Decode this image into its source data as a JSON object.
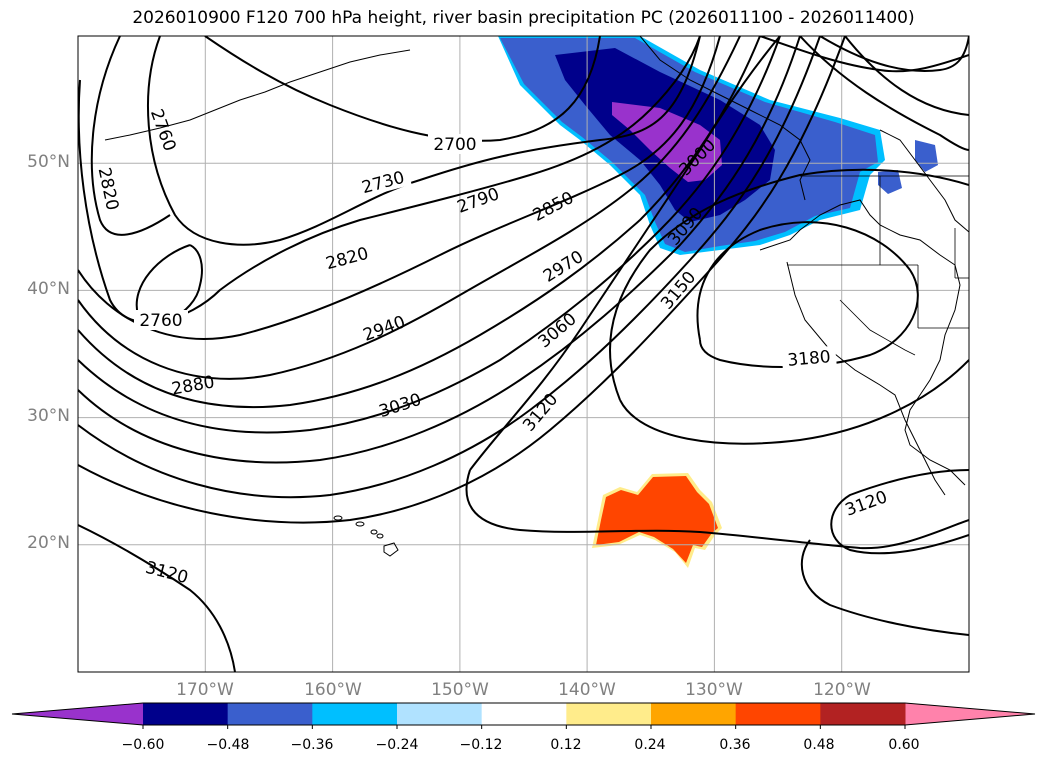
{
  "title": "2026010900 F120 700 hPa height, river basin precipitation PC (2026011100 - 2026011400)",
  "map": {
    "projection": "plate-carree",
    "lon_range_deg": [
      -180,
      -110
    ],
    "lat_range_deg": [
      10,
      60
    ],
    "gridlines": true
  },
  "lat_labels": [
    "50°N",
    "40°N",
    "30°N",
    "20°N"
  ],
  "lon_labels": [
    "170°W",
    "160°W",
    "150°W",
    "140°W",
    "130°W",
    "120°W"
  ],
  "contour_labels": [
    "2700",
    "2730",
    "2760",
    "2760",
    "2790",
    "2820",
    "2820",
    "2850",
    "2880",
    "2940",
    "2970",
    "3000",
    "3030",
    "3060",
    "3090",
    "3120",
    "3120",
    "3120",
    "3150",
    "3180"
  ],
  "colorbar": {
    "orientation": "horizontal",
    "extend": "both",
    "tick_labels": [
      "−0.60",
      "−0.48",
      "−0.36",
      "−0.24",
      "−0.12",
      "0.12",
      "0.24",
      "0.36",
      "0.48",
      "0.60"
    ],
    "colors": [
      "#9932CC",
      "#00008B",
      "#3A5FCD",
      "#00BFFF",
      "#B0E2FF",
      "#FFFFFF",
      "#FFEC8B",
      "#FFA500",
      "#FF4500",
      "#B22222",
      "#FF82AB"
    ]
  },
  "palette": {
    "shading_negative_strong": "#9932CC",
    "shading_negative_dark": "#00008B",
    "shading_negative_mid": "#3A5FCD",
    "shading_negative_light": "#00BFFF",
    "shading_positive": "#FF4500",
    "contour": "#000000",
    "grid": "#B0B0B0"
  }
}
